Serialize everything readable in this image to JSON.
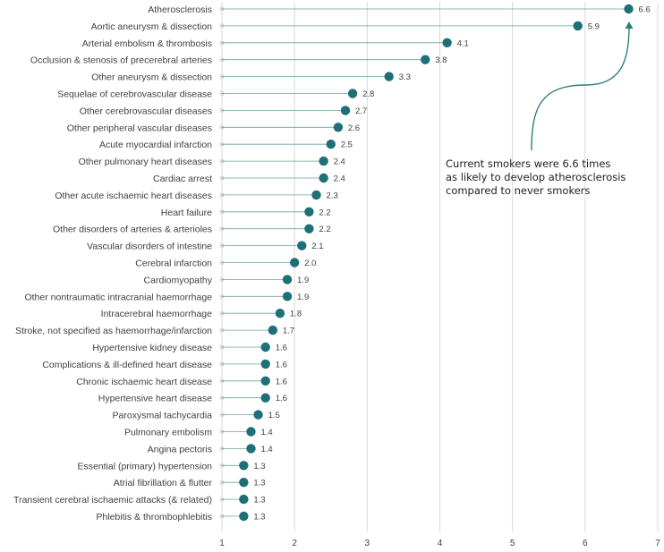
{
  "chart_data": {
    "type": "lollipop",
    "orientation": "horizontal",
    "categories": [
      "Atherosclerosis",
      "Aortic aneurysm & dissection",
      "Arterial embolism & thrombosis",
      "Occlusion & stenosis of precerebral arteries",
      "Other aneurysm & dissection",
      "Sequelae of cerebrovascular disease",
      "Other cerebrovascular diseases",
      "Other peripheral vascular diseases",
      "Acute myocardial infarction",
      "Other pulmonary heart diseases",
      "Cardiac arrest",
      "Other acute ischaemic heart diseases",
      "Heart failure",
      "Other disorders of arteries & arterioles",
      "Vascular disorders of intestine",
      "Cerebral infarction",
      "Cardiomyopathy",
      "Other nontraumatic intracranial haemorrhage",
      "Intracerebral haemorrhage",
      "Stroke, not specified as haemorrhage/infarction",
      "Hypertensive kidney disease",
      "Complications & ill-defined heart disease",
      "Chronic ischaemic heart disease",
      "Hypertensive heart disease",
      "Paroxysmal tachycardia",
      "Pulmonary embolism",
      "Angina pectoris",
      "Essential (primary) hypertension",
      "Atrial fibrillation & flutter",
      "Transient cerebral ischaemic attacks (& related)",
      "Phlebitis & thrombophlebitis"
    ],
    "values": [
      6.6,
      5.9,
      4.1,
      3.8,
      3.3,
      2.8,
      2.7,
      2.6,
      2.5,
      2.4,
      2.4,
      2.3,
      2.2,
      2.2,
      2.1,
      2.0,
      1.9,
      1.9,
      1.8,
      1.7,
      1.6,
      1.6,
      1.6,
      1.6,
      1.5,
      1.4,
      1.4,
      1.3,
      1.3,
      1.3,
      1.3
    ],
    "value_labels": [
      "6.6",
      "5.9",
      "4.1",
      "3.8",
      "3.3",
      "2.8",
      "2.7",
      "2.6",
      "2.5",
      "2.4",
      "2.4",
      "2.3",
      "2.2",
      "2.2",
      "2.1",
      "2.0",
      "1.9",
      "1.9",
      "1.8",
      "1.7",
      "1.6",
      "1.6",
      "1.6",
      "1.6",
      "1.5",
      "1.4",
      "1.4",
      "1.3",
      "1.3",
      "1.3",
      "1.3"
    ],
    "xlim": [
      1,
      7
    ],
    "xticks": [
      "1",
      "2",
      "3",
      "4",
      "5",
      "6",
      "7"
    ],
    "grid": "vertical",
    "baseline": 1,
    "colors": {
      "marker": "#1f6f78",
      "stem": "#1f6f78",
      "grid": "#d9d9d9",
      "baseline_dot": "#d9d9d9",
      "annotation_arrow": "#2f7f78"
    },
    "annotation": {
      "lines": [
        "Current smokers were 6.6 times",
        "as likely to develop atherosclerosis",
        "compared to never smokers"
      ],
      "points_to": "Atherosclerosis"
    }
  }
}
